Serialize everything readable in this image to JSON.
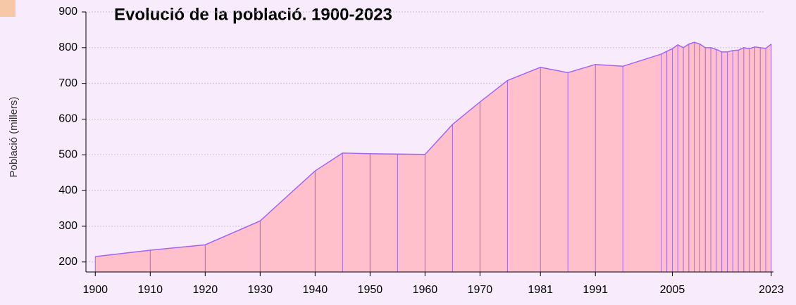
{
  "chart_data": {
    "type": "area",
    "title": "Evolució de la població. 1900-2023",
    "y_label": "Població (millers)",
    "x": [
      1900,
      1910,
      1920,
      1930,
      1940,
      1945,
      1950,
      1955,
      1960,
      1965,
      1970,
      1975,
      1981,
      1986,
      1991,
      1996,
      2003,
      2004,
      2005,
      2006,
      2007,
      2008,
      2009,
      2010,
      2011,
      2012,
      2013,
      2014,
      2015,
      2016,
      2017,
      2018,
      2019,
      2020,
      2021,
      2022,
      2023
    ],
    "values": [
      215,
      233,
      248,
      315,
      455,
      505,
      503,
      502,
      501,
      585,
      648,
      708,
      745,
      730,
      753,
      748,
      782,
      790,
      797,
      808,
      800,
      810,
      815,
      810,
      800,
      800,
      795,
      788,
      788,
      792,
      793,
      800,
      797,
      802,
      800,
      798,
      810
    ],
    "color": "#ffc0cb",
    "line_color": "#a066f0",
    "xlim": [
      1898.3,
      2023.4
    ],
    "xticks": [
      1900,
      1910,
      1920,
      1930,
      1940,
      1950,
      1960,
      1970,
      1981,
      1991,
      2005,
      2023
    ],
    "ylim": [
      172,
      900
    ],
    "yticks": [
      200,
      300,
      400,
      500,
      600,
      700,
      800,
      900
    ],
    "grid": true
  }
}
